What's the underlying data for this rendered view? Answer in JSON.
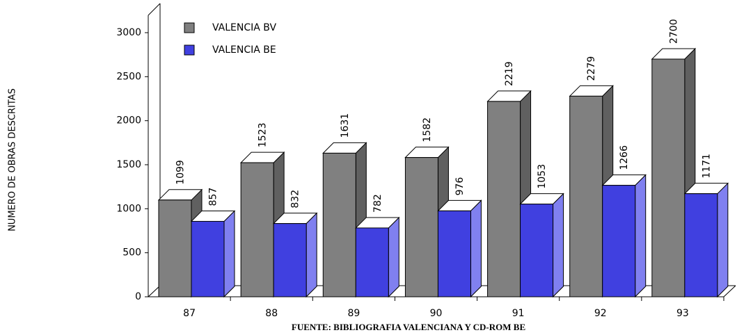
{
  "chart_data": {
    "type": "bar3d",
    "x_label": "FUENTE: BIBLIOGRAFIA VALENCIANA Y CD-ROM BE",
    "y_label": "NUMERO DE OBRAS DESCRITAS",
    "categories": [
      "87",
      "88",
      "89",
      "90",
      "91",
      "92",
      "93"
    ],
    "series": [
      {
        "name": "VALENCIA BV",
        "color": "#808080",
        "values": [
          1099,
          1523,
          1631,
          1582,
          2219,
          2279,
          2700
        ]
      },
      {
        "name": "VALENCIA BE",
        "color": "#4040e0",
        "values": [
          857,
          832,
          782,
          976,
          1053,
          1266,
          1171
        ]
      }
    ],
    "ylim": [
      0,
      3000
    ],
    "yticks": [
      0,
      500,
      1000,
      1500,
      2000,
      2500,
      3000
    ],
    "legend": "upper left",
    "grid": false
  }
}
